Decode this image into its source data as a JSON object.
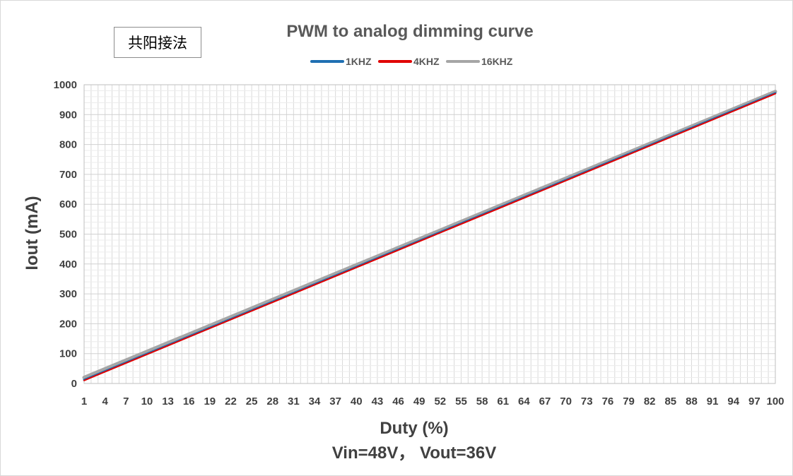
{
  "note_label": "共阳接法",
  "subtitle": "Vin=48V， Vout=36V",
  "chart_data": {
    "type": "line",
    "title": "PWM  to analog dimming curve",
    "xlabel": "Duty (%)",
    "ylabel": "Iout (mA)",
    "xlim": [
      1,
      100
    ],
    "ylim": [
      0,
      1000
    ],
    "y_ticks": [
      0,
      100,
      200,
      300,
      400,
      500,
      600,
      700,
      800,
      900,
      1000
    ],
    "x_ticks": [
      1,
      4,
      7,
      10,
      13,
      16,
      19,
      22,
      25,
      28,
      31,
      34,
      37,
      40,
      43,
      46,
      49,
      52,
      55,
      58,
      61,
      64,
      67,
      70,
      73,
      76,
      79,
      82,
      85,
      88,
      91,
      94,
      97,
      100
    ],
    "grid": true,
    "legend_position": "top",
    "series": [
      {
        "name": "1KHZ",
        "color": "#1f6fb2",
        "x": [
          1,
          100
        ],
        "y": [
          12,
          972
        ]
      },
      {
        "name": "4KHZ",
        "color": "#e00000",
        "x": [
          1,
          100
        ],
        "y": [
          10,
          970
        ]
      },
      {
        "name": "16KHZ",
        "color": "#a6a6a6",
        "x": [
          1,
          100
        ],
        "y": [
          20,
          977
        ]
      }
    ]
  }
}
